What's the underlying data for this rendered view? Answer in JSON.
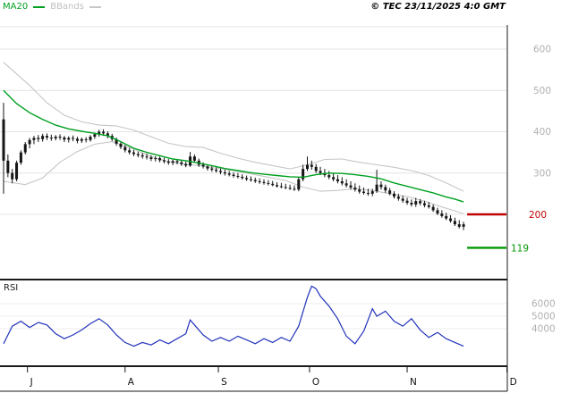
{
  "legend": {
    "ma20_label": "MA20",
    "bbands_label": "BBands"
  },
  "header": {
    "copyright": "© TEC 23/11/2025 4:0 GMT"
  },
  "rsi_panel": {
    "label": "RSI"
  },
  "colors": {
    "ma20": "#00a020",
    "bbands": "#c6c6c6",
    "candle": "#161616",
    "rsi": "#2233bb",
    "grid": "#e3e3e3",
    "grid_rsi": "#ececec",
    "axis": "#1a1a1a",
    "axis_label": "#b0b0b0",
    "level_red": "#c00000",
    "level_green": "#009900"
  },
  "chart_data": {
    "type": "candlestick",
    "title": "",
    "ylabel": "",
    "ylim": [
      40,
      660
    ],
    "rsi_ylim": [
      1000,
      7800
    ],
    "months": [
      {
        "label": "J",
        "i": 5.5
      },
      {
        "label": "A",
        "i": 28
      },
      {
        "label": "S",
        "i": 49.5
      },
      {
        "label": "O",
        "i": 70.5
      },
      {
        "label": "N",
        "i": 93
      },
      {
        "label": "D",
        "i": 116
      }
    ],
    "price_gridlines": [
      {
        "value": 600,
        "label": "600"
      },
      {
        "value": 500,
        "label": "500"
      },
      {
        "value": 400,
        "label": "400"
      },
      {
        "value": 300,
        "label": "300"
      },
      {
        "value": 200,
        "label": ""
      }
    ],
    "levels": [
      {
        "name": "resistance",
        "value": 200,
        "label": "200",
        "color": "#c00000"
      },
      {
        "name": "support",
        "value": 119,
        "label": "119",
        "color": "#009900"
      }
    ],
    "rsi_gridlines": [
      {
        "value": 6000,
        "label": "6000"
      },
      {
        "value": 5000,
        "label": "5000"
      },
      {
        "value": 4000,
        "label": "4000"
      }
    ],
    "candles": [
      [
        430,
        470,
        250,
        330
      ],
      [
        330,
        345,
        290,
        300
      ],
      [
        300,
        310,
        275,
        285
      ],
      [
        285,
        330,
        280,
        325
      ],
      [
        325,
        355,
        320,
        350
      ],
      [
        350,
        375,
        345,
        370
      ],
      [
        370,
        385,
        360,
        380
      ],
      [
        380,
        390,
        370,
        385
      ],
      [
        385,
        392,
        375,
        382
      ],
      [
        382,
        395,
        376,
        390
      ],
      [
        390,
        396,
        380,
        386
      ],
      [
        386,
        393,
        378,
        384
      ],
      [
        384,
        392,
        379,
        388
      ],
      [
        388,
        394,
        380,
        386
      ],
      [
        386,
        390,
        375,
        381
      ],
      [
        381,
        389,
        374,
        385
      ],
      [
        385,
        391,
        377,
        383
      ],
      [
        383,
        388,
        372,
        378
      ],
      [
        378,
        386,
        373,
        382
      ],
      [
        382,
        387,
        374,
        380
      ],
      [
        380,
        392,
        376,
        388
      ],
      [
        388,
        398,
        383,
        394
      ],
      [
        394,
        405,
        388,
        400
      ],
      [
        400,
        406,
        390,
        396
      ],
      [
        396,
        401,
        384,
        390
      ],
      [
        390,
        395,
        377,
        382
      ],
      [
        382,
        386,
        366,
        371
      ],
      [
        371,
        376,
        358,
        363
      ],
      [
        363,
        368,
        350,
        355
      ],
      [
        355,
        361,
        345,
        350
      ],
      [
        350,
        356,
        341,
        346
      ],
      [
        346,
        352,
        338,
        343
      ],
      [
        343,
        349,
        335,
        340
      ],
      [
        340,
        347,
        333,
        338
      ],
      [
        338,
        343,
        329,
        334
      ],
      [
        334,
        341,
        328,
        336
      ],
      [
        336,
        340,
        326,
        331
      ],
      [
        331,
        337,
        323,
        328
      ],
      [
        328,
        334,
        320,
        325
      ],
      [
        325,
        332,
        319,
        329
      ],
      [
        329,
        333,
        321,
        326
      ],
      [
        326,
        331,
        317,
        322
      ],
      [
        322,
        328,
        314,
        318
      ],
      [
        318,
        351,
        315,
        340
      ],
      [
        340,
        345,
        325,
        330
      ],
      [
        330,
        335,
        315,
        320
      ],
      [
        320,
        326,
        311,
        316
      ],
      [
        316,
        321,
        306,
        311
      ],
      [
        311,
        317,
        303,
        308
      ],
      [
        308,
        314,
        301,
        305
      ],
      [
        305,
        311,
        297,
        302
      ],
      [
        302,
        308,
        294,
        299
      ],
      [
        299,
        305,
        292,
        296
      ],
      [
        296,
        302,
        289,
        293
      ],
      [
        293,
        300,
        287,
        291
      ],
      [
        291,
        297,
        284,
        288
      ],
      [
        288,
        294,
        281,
        285
      ],
      [
        285,
        292,
        279,
        283
      ],
      [
        283,
        289,
        276,
        280
      ],
      [
        280,
        287,
        274,
        278
      ],
      [
        278,
        285,
        272,
        276
      ],
      [
        276,
        283,
        270,
        274
      ],
      [
        274,
        281,
        268,
        271
      ],
      [
        271,
        278,
        265,
        268
      ],
      [
        268,
        276,
        263,
        266
      ],
      [
        266,
        274,
        261,
        264
      ],
      [
        264,
        272,
        259,
        262
      ],
      [
        262,
        270,
        257,
        260
      ],
      [
        260,
        290,
        256,
        285
      ],
      [
        285,
        320,
        280,
        310
      ],
      [
        310,
        340,
        305,
        320
      ],
      [
        320,
        330,
        308,
        315
      ],
      [
        315,
        322,
        300,
        305
      ],
      [
        305,
        315,
        295,
        300
      ],
      [
        300,
        310,
        290,
        295
      ],
      [
        295,
        305,
        285,
        290
      ],
      [
        290,
        300,
        280,
        285
      ],
      [
        285,
        295,
        275,
        280
      ],
      [
        280,
        290,
        270,
        275
      ],
      [
        275,
        285,
        265,
        270
      ],
      [
        270,
        280,
        260,
        265
      ],
      [
        265,
        275,
        255,
        260
      ],
      [
        260,
        270,
        250,
        255
      ],
      [
        255,
        265,
        248,
        252
      ],
      [
        252,
        262,
        245,
        250
      ],
      [
        250,
        262,
        244,
        256
      ],
      [
        256,
        308,
        252,
        272
      ],
      [
        272,
        280,
        260,
        266
      ],
      [
        266,
        272,
        252,
        258
      ],
      [
        258,
        264,
        246,
        250
      ],
      [
        250,
        256,
        238,
        243
      ],
      [
        243,
        250,
        233,
        238
      ],
      [
        238,
        245,
        228,
        233
      ],
      [
        233,
        240,
        223,
        228
      ],
      [
        228,
        236,
        219,
        224
      ],
      [
        224,
        240,
        218,
        232
      ],
      [
        232,
        237,
        222,
        227
      ],
      [
        227,
        233,
        217,
        222
      ],
      [
        222,
        230,
        214,
        218
      ],
      [
        218,
        224,
        206,
        210
      ],
      [
        210,
        216,
        198,
        202
      ],
      [
        202,
        210,
        192,
        196
      ],
      [
        196,
        204,
        186,
        190
      ],
      [
        190,
        198,
        180,
        184
      ],
      [
        184,
        192,
        172,
        176
      ],
      [
        176,
        186,
        166,
        170
      ],
      [
        170,
        182,
        162,
        176
      ]
    ],
    "ma20": [
      [
        0,
        500
      ],
      [
        3,
        468
      ],
      [
        6,
        446
      ],
      [
        9,
        430
      ],
      [
        12,
        416
      ],
      [
        15,
        407
      ],
      [
        18,
        401
      ],
      [
        21,
        396
      ],
      [
        24,
        390
      ],
      [
        27,
        376
      ],
      [
        30,
        360
      ],
      [
        33,
        350
      ],
      [
        36,
        342
      ],
      [
        39,
        334
      ],
      [
        42,
        330
      ],
      [
        45,
        324
      ],
      [
        48,
        318
      ],
      [
        51,
        311
      ],
      [
        54,
        306
      ],
      [
        57,
        301
      ],
      [
        60,
        297
      ],
      [
        63,
        294
      ],
      [
        66,
        291
      ],
      [
        69,
        290
      ],
      [
        72,
        296
      ],
      [
        75,
        300
      ],
      [
        78,
        299
      ],
      [
        81,
        296
      ],
      [
        84,
        292
      ],
      [
        87,
        286
      ],
      [
        90,
        276
      ],
      [
        93,
        268
      ],
      [
        96,
        260
      ],
      [
        99,
        252
      ],
      [
        102,
        242
      ],
      [
        104,
        237
      ],
      [
        106,
        230
      ]
    ],
    "bb_upper": [
      [
        0,
        568
      ],
      [
        6,
        512
      ],
      [
        10,
        470
      ],
      [
        14,
        440
      ],
      [
        18,
        424
      ],
      [
        22,
        416
      ],
      [
        26,
        414
      ],
      [
        30,
        404
      ],
      [
        34,
        388
      ],
      [
        38,
        372
      ],
      [
        42,
        364
      ],
      [
        46,
        362
      ],
      [
        50,
        348
      ],
      [
        54,
        336
      ],
      [
        58,
        326
      ],
      [
        62,
        318
      ],
      [
        66,
        310
      ],
      [
        70,
        320
      ],
      [
        74,
        333
      ],
      [
        78,
        334
      ],
      [
        82,
        326
      ],
      [
        86,
        320
      ],
      [
        90,
        314
      ],
      [
        94,
        306
      ],
      [
        98,
        294
      ],
      [
        102,
        276
      ],
      [
        106,
        256
      ]
    ],
    "bb_lower": [
      [
        0,
        280
      ],
      [
        5,
        272
      ],
      [
        9,
        288
      ],
      [
        13,
        326
      ],
      [
        17,
        352
      ],
      [
        21,
        370
      ],
      [
        25,
        376
      ],
      [
        29,
        362
      ],
      [
        33,
        344
      ],
      [
        37,
        330
      ],
      [
        41,
        322
      ],
      [
        45,
        318
      ],
      [
        49,
        312
      ],
      [
        53,
        306
      ],
      [
        57,
        298
      ],
      [
        61,
        290
      ],
      [
        65,
        282
      ],
      [
        69,
        266
      ],
      [
        73,
        256
      ],
      [
        77,
        258
      ],
      [
        81,
        262
      ],
      [
        85,
        258
      ],
      [
        89,
        250
      ],
      [
        93,
        243
      ],
      [
        97,
        232
      ],
      [
        101,
        218
      ],
      [
        106,
        202
      ]
    ],
    "rsi": [
      [
        0,
        2800
      ],
      [
        2,
        4200
      ],
      [
        4,
        4600
      ],
      [
        6,
        4100
      ],
      [
        8,
        4500
      ],
      [
        10,
        4300
      ],
      [
        12,
        3600
      ],
      [
        14,
        3200
      ],
      [
        16,
        3500
      ],
      [
        18,
        3900
      ],
      [
        20,
        4400
      ],
      [
        22,
        4800
      ],
      [
        24,
        4300
      ],
      [
        26,
        3500
      ],
      [
        28,
        2900
      ],
      [
        30,
        2600
      ],
      [
        32,
        2900
      ],
      [
        34,
        2700
      ],
      [
        36,
        3100
      ],
      [
        38,
        2800
      ],
      [
        40,
        3200
      ],
      [
        42,
        3600
      ],
      [
        43,
        4700
      ],
      [
        44,
        4300
      ],
      [
        46,
        3500
      ],
      [
        48,
        3000
      ],
      [
        50,
        3300
      ],
      [
        52,
        3000
      ],
      [
        54,
        3400
      ],
      [
        56,
        3100
      ],
      [
        58,
        2800
      ],
      [
        60,
        3200
      ],
      [
        62,
        2900
      ],
      [
        64,
        3300
      ],
      [
        66,
        3000
      ],
      [
        68,
        4200
      ],
      [
        70,
        6500
      ],
      [
        71,
        7400
      ],
      [
        72,
        7200
      ],
      [
        73,
        6600
      ],
      [
        75,
        5800
      ],
      [
        77,
        4800
      ],
      [
        79,
        3400
      ],
      [
        81,
        2800
      ],
      [
        83,
        3800
      ],
      [
        85,
        5600
      ],
      [
        86,
        5000
      ],
      [
        88,
        5400
      ],
      [
        90,
        4600
      ],
      [
        92,
        4200
      ],
      [
        94,
        4800
      ],
      [
        96,
        3900
      ],
      [
        98,
        3300
      ],
      [
        100,
        3700
      ],
      [
        102,
        3200
      ],
      [
        104,
        2900
      ],
      [
        106,
        2600
      ]
    ]
  }
}
